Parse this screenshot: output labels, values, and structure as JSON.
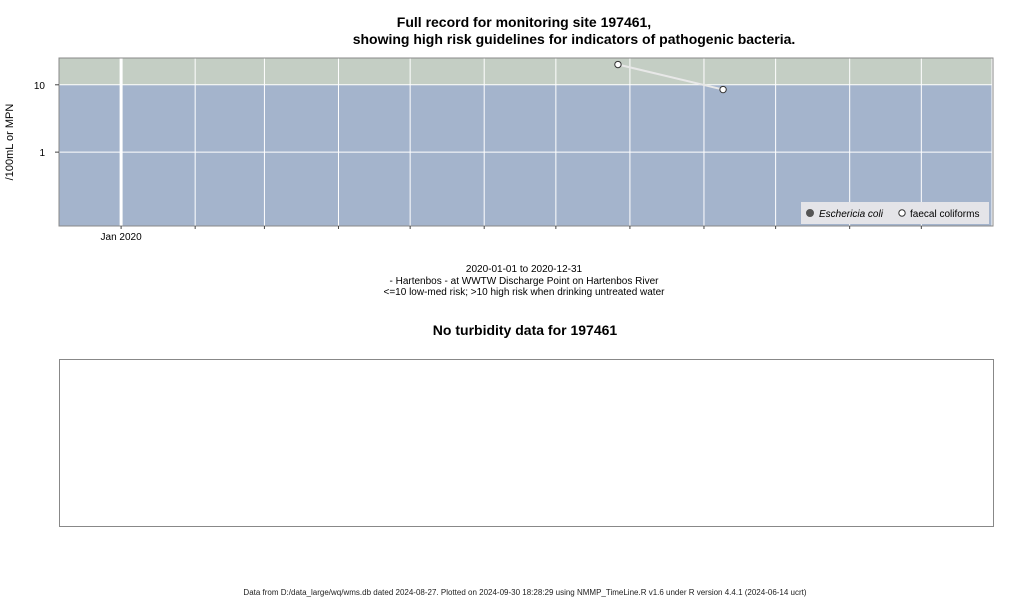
{
  "header": {
    "title_line1": "Full record for monitoring site 197461,",
    "title_line2": "showing high risk guidelines for indicators of pathogenic bacteria."
  },
  "chart_data": {
    "type": "line",
    "yscale": "log",
    "ylabel": "/100mL or MPN",
    "y_ticks": [
      1,
      10
    ],
    "y_tick_labels": [
      "1",
      "10"
    ],
    "ylim": [
      0.08,
      25
    ],
    "xlim": [
      "2019-12-06",
      "2020-12-31"
    ],
    "x_tick_label": {
      "date": "2020-01-01",
      "label": "Jan 2020"
    },
    "guideline": {
      "value": 10,
      "below_color": "#a4b4cc",
      "above_color": "#c4cec4"
    },
    "grid": true,
    "legend_position": "bottom-right",
    "series": [
      {
        "name": "Eschericia coli",
        "marker": "filled-circle",
        "color": "#555555",
        "points": []
      },
      {
        "name": "faecal coliforms",
        "marker": "open-circle",
        "color": "#e8e8e8",
        "points": [
          {
            "x": "2020-07-27",
            "y": 20
          },
          {
            "x": "2020-09-09",
            "y": 8.5
          }
        ]
      }
    ]
  },
  "caption": {
    "date_range": "2020-01-01 to 2020-12-31",
    "site": "- Hartenbos - at WWTW Discharge Point on Hartenbos River",
    "risk": "<=10 low-med risk; >10 high risk when drinking untreated water"
  },
  "turbidity": {
    "title": "No turbidity data for 197461"
  },
  "footer": "Data from D:/data_large/wq/wms.db dated 2024-08-27. Plotted on 2024-09-30 18:28:29 using NMMP_TimeLine.R v1.6 under R version 4.4.1 (2024-06-14 ucrt)"
}
